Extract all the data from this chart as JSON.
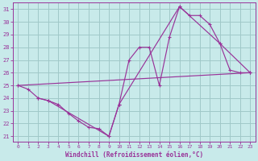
{
  "xlabel": "Windchill (Refroidissement éolien,°C)",
  "background_color": "#c8eaea",
  "grid_color": "#a0c8c8",
  "line_color": "#993399",
  "xlim": [
    -0.5,
    23.5
  ],
  "ylim": [
    20.6,
    31.5
  ],
  "xticks": [
    0,
    1,
    2,
    3,
    4,
    5,
    6,
    7,
    8,
    9,
    10,
    11,
    12,
    13,
    14,
    15,
    16,
    17,
    18,
    19,
    20,
    21,
    22,
    23
  ],
  "yticks": [
    21,
    22,
    23,
    24,
    25,
    26,
    27,
    28,
    29,
    30,
    31
  ],
  "curve1_x": [
    0,
    1,
    2,
    3,
    4,
    5,
    6,
    7,
    8,
    9,
    10,
    11,
    12,
    13,
    14,
    15,
    16,
    17,
    18,
    19,
    20,
    21,
    22,
    23
  ],
  "curve1_y": [
    25.0,
    24.7,
    24.0,
    23.8,
    23.5,
    22.8,
    22.2,
    21.7,
    21.6,
    21.0,
    23.5,
    27.0,
    28.0,
    28.0,
    25.0,
    28.8,
    31.2,
    30.5,
    30.5,
    29.8,
    28.3,
    26.2,
    26.0,
    26.0
  ],
  "curve2_x": [
    0,
    23
  ],
  "curve2_y": [
    25.0,
    26.0
  ],
  "curve3_x": [
    2,
    3,
    9,
    10,
    16,
    20,
    23
  ],
  "curve3_y": [
    24.0,
    23.8,
    21.0,
    23.5,
    31.2,
    28.3,
    26.0
  ]
}
